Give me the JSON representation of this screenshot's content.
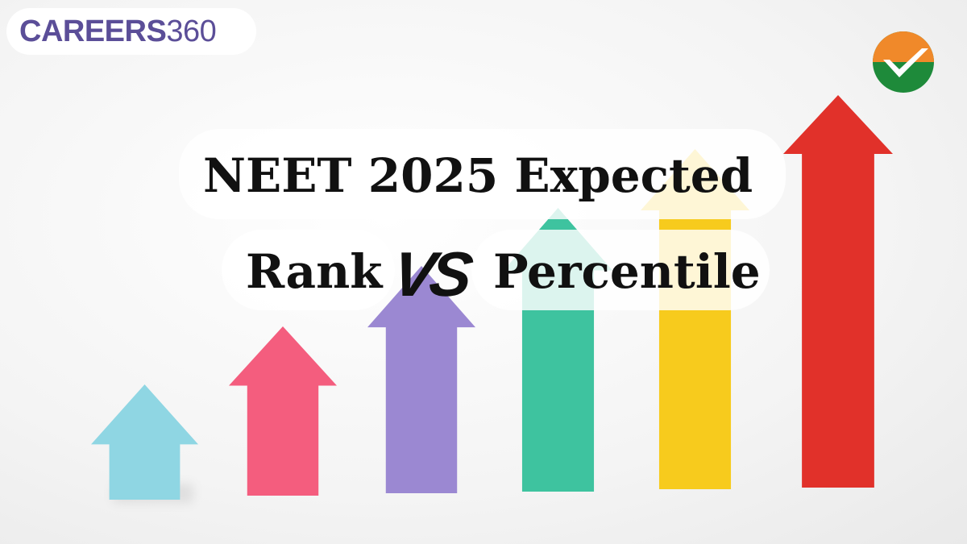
{
  "brand": {
    "logo_bold": "CAREERS",
    "logo_light": "360",
    "color": "#5b4e98"
  },
  "headline": {
    "line1": "NEET 2025 Expected",
    "left": "Rank",
    "vs": "VS",
    "right": "Percentile"
  },
  "badge": {
    "icon": "check-badge-icon",
    "top_color": "#f0892a",
    "bottom_color": "#1e8a3a"
  },
  "arrows": [
    {
      "color": "#8fd6e3"
    },
    {
      "color": "#f45d7e"
    },
    {
      "color": "#9b88d2"
    },
    {
      "color": "#3ec39f"
    },
    {
      "color": "#f7cb1d"
    },
    {
      "color": "#e1312a"
    }
  ]
}
